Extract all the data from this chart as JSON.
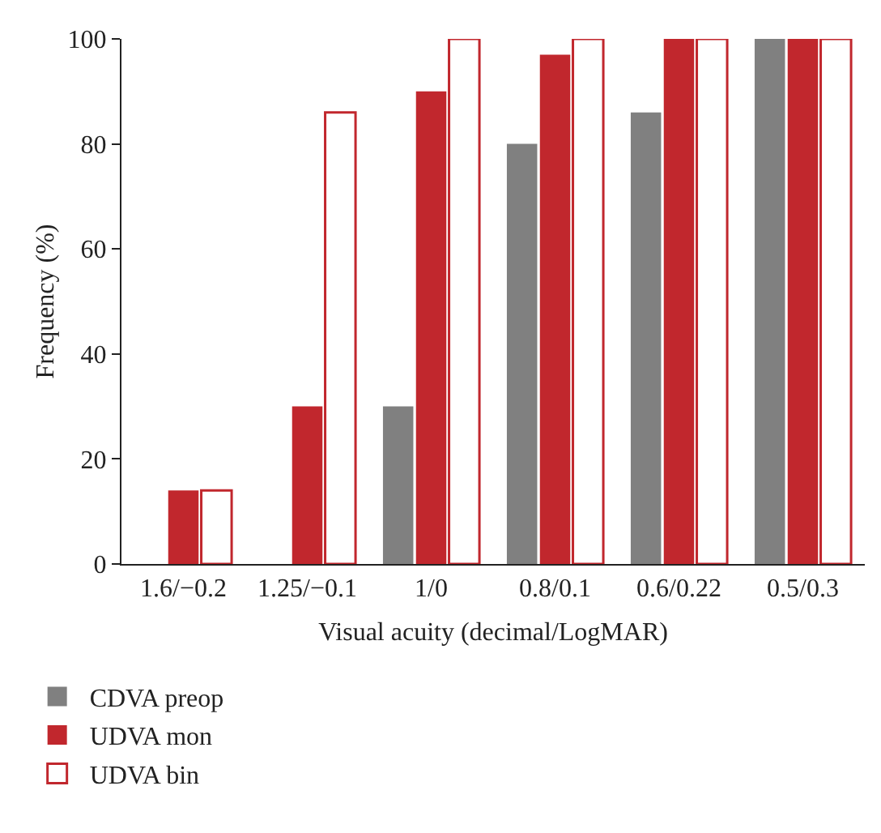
{
  "chart_data": {
    "type": "bar",
    "xlabel": "Visual acuity (decimal/LogMAR)",
    "ylabel": "Frequency (%)",
    "categories": [
      "1.6/−0.2",
      "1.25/−0.1",
      "1/0",
      "0.8/0.1",
      "0.6/0.22",
      "0.5/0.3"
    ],
    "series": [
      {
        "name": "CDVA preop",
        "color": "#808080",
        "values": [
          0,
          0,
          30,
          80,
          86,
          100
        ]
      },
      {
        "name": "UDVA mon",
        "color": "#c1272d",
        "values": [
          14,
          30,
          90,
          97,
          100,
          100
        ]
      },
      {
        "name": "UDVA bin",
        "color": "#ffffff",
        "values": [
          14,
          86,
          100,
          100,
          100,
          100
        ]
      }
    ],
    "ylim": [
      0,
      100
    ],
    "yticks": [
      0,
      20,
      40,
      60,
      80,
      100
    ],
    "grid": false,
    "legend": "bottom left"
  }
}
